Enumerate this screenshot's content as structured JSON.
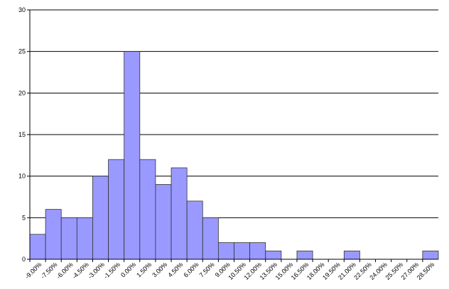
{
  "chart_data": {
    "type": "bar",
    "categories": [
      "-9.00%",
      "-7.50%",
      "-6.00%",
      "-4.50%",
      "-3.00%",
      "-1.50%",
      "0.00%",
      "1.50%",
      "3.00%",
      "4.50%",
      "6.00%",
      "7.50%",
      "9.00%",
      "10.50%",
      "12.00%",
      "13.50%",
      "15.00%",
      "16.50%",
      "18.00%",
      "19.50%",
      "21.00%",
      "22.50%",
      "24.00%",
      "25.50%",
      "27.00%",
      "28.50%"
    ],
    "values": [
      3,
      6,
      5,
      5,
      10,
      12,
      25,
      12,
      9,
      11,
      7,
      5,
      2,
      2,
      2,
      1,
      0,
      1,
      0,
      0,
      1,
      0,
      0,
      0,
      0,
      1
    ],
    "color": "#9999ff",
    "ylim": [
      0,
      30
    ],
    "yticks": [
      0,
      5,
      10,
      15,
      20,
      25,
      30
    ],
    "grid": true
  }
}
